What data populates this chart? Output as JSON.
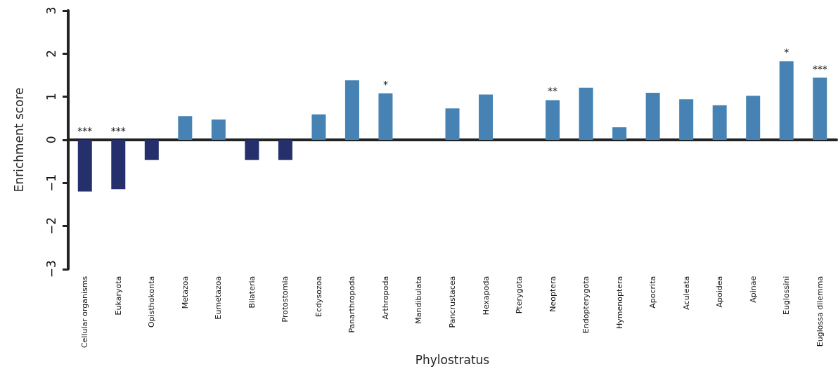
{
  "chart_data": {
    "type": "bar",
    "xlabel": "Phylostratus",
    "ylabel": "Enrichment score",
    "categories": [
      "Cellular organisms",
      "Eukaryota",
      "Opisthokonta",
      "Metazoa",
      "Eumetazoa",
      "Bilateria",
      "Protostomia",
      "Ecdysozoa",
      "Panarthropoda",
      "Arthropoda",
      "Mandibulata",
      "Pancrustacea",
      "Hexapoda",
      "Pterygota",
      "Neoptera",
      "Endopterygota",
      "Hymenoptera",
      "Apocrita",
      "Aculeata",
      "Apoidea",
      "Apinae",
      "Euglossini",
      "Euglossa dilemma"
    ],
    "values": [
      -1.2,
      -1.15,
      -0.47,
      0.55,
      0.47,
      -0.47,
      -0.47,
      0.59,
      1.38,
      1.08,
      0,
      0.73,
      1.05,
      0,
      0.92,
      1.21,
      0.29,
      1.09,
      0.94,
      0.8,
      1.02,
      1.82,
      1.44
    ],
    "colors": [
      "#252f6b",
      "#252f6b",
      "#252f6b",
      "#4682b4",
      "#4682b4",
      "#252f6b",
      "#252f6b",
      "#4682b4",
      "#4682b4",
      "#4682b4",
      "#4682b4",
      "#4682b4",
      "#4682b4",
      "#4682b4",
      "#4682b4",
      "#4682b4",
      "#4682b4",
      "#4682b4",
      "#4682b4",
      "#4682b4",
      "#4682b4",
      "#4682b4",
      "#4682b4"
    ],
    "ylim": [
      -3,
      3
    ],
    "yticks": [
      {
        "value": -3,
        "label": "−3"
      },
      {
        "value": -2,
        "label": "−2"
      },
      {
        "value": -1,
        "label": "−1"
      },
      0,
      1,
      2,
      3
    ],
    "value_labels": [
      "***",
      "***",
      null,
      null,
      null,
      null,
      null,
      null,
      null,
      "*",
      null,
      null,
      null,
      null,
      "**",
      null,
      null,
      null,
      null,
      null,
      null,
      "*",
      "***"
    ]
  }
}
